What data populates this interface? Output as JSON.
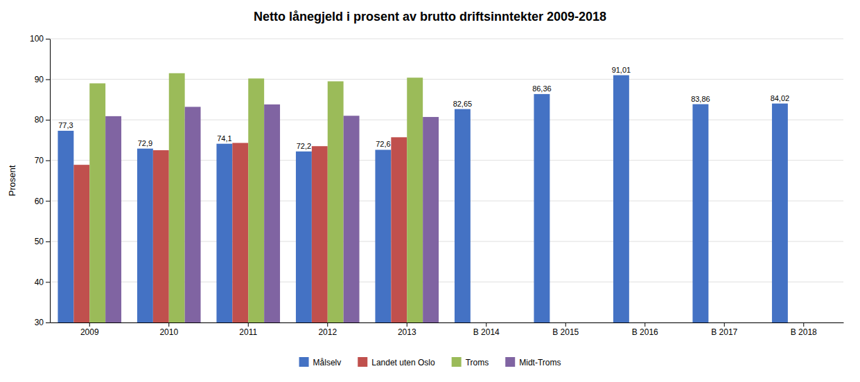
{
  "chart_data": {
    "type": "bar",
    "title": "Netto lånegjeld i prosent av brutto driftsinntekter 2009-2018",
    "ylabel": "Prosent",
    "categories": [
      "2009",
      "2010",
      "2011",
      "2012",
      "2013",
      "B 2014",
      "B 2015",
      "B 2016",
      "B 2017",
      "B 2018"
    ],
    "series": [
      {
        "name": "Målselv",
        "color": "#4472C4",
        "values": [
          77.3,
          72.9,
          74.1,
          72.2,
          72.6,
          82.65,
          86.36,
          91.01,
          83.86,
          84.02
        ],
        "data_labels": true,
        "value_labels": [
          "77,3",
          "72,9",
          "74,1",
          "72,2",
          "72,6",
          "82,65",
          "86,36",
          "91,01",
          "83,86",
          "84,02"
        ]
      },
      {
        "name": "Landet uten Oslo",
        "color": "#C0504D",
        "values": [
          68.9,
          72.5,
          74.3,
          73.5,
          75.7,
          null,
          null,
          null,
          null,
          null
        ]
      },
      {
        "name": "Troms",
        "color": "#9BBB59",
        "values": [
          89.0,
          91.5,
          90.2,
          89.5,
          90.4,
          null,
          null,
          null,
          null,
          null
        ]
      },
      {
        "name": "Midt-Troms",
        "color": "#8064A2",
        "values": [
          80.9,
          83.2,
          83.8,
          81.0,
          80.7,
          null,
          null,
          null,
          null,
          null
        ]
      }
    ],
    "ylim": [
      30,
      100
    ],
    "yticks": [
      30,
      40,
      50,
      60,
      70,
      80,
      90,
      100
    ],
    "grid": true,
    "legend": "bottom"
  }
}
